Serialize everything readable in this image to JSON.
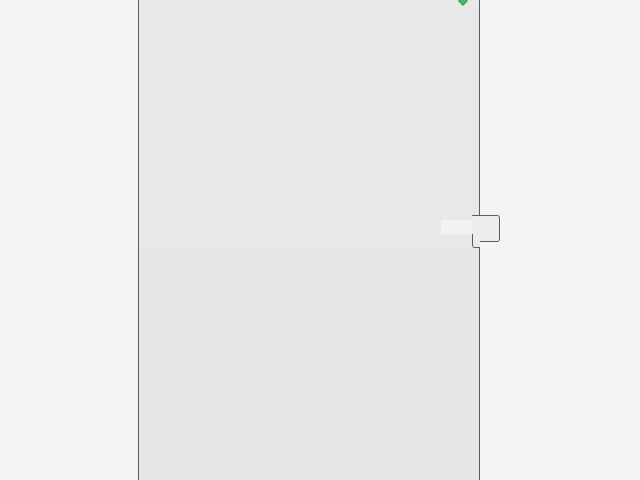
{
  "screen": {
    "background_color": "#f4f4f4"
  },
  "panel": {
    "background_color": "#e6e6e6",
    "border_color": "#5c5c5c"
  },
  "status_marker": {
    "icon": "green-diamond-icon",
    "color": "#23a944"
  },
  "side_tab": {
    "icon": "drawer-handle-icon"
  }
}
